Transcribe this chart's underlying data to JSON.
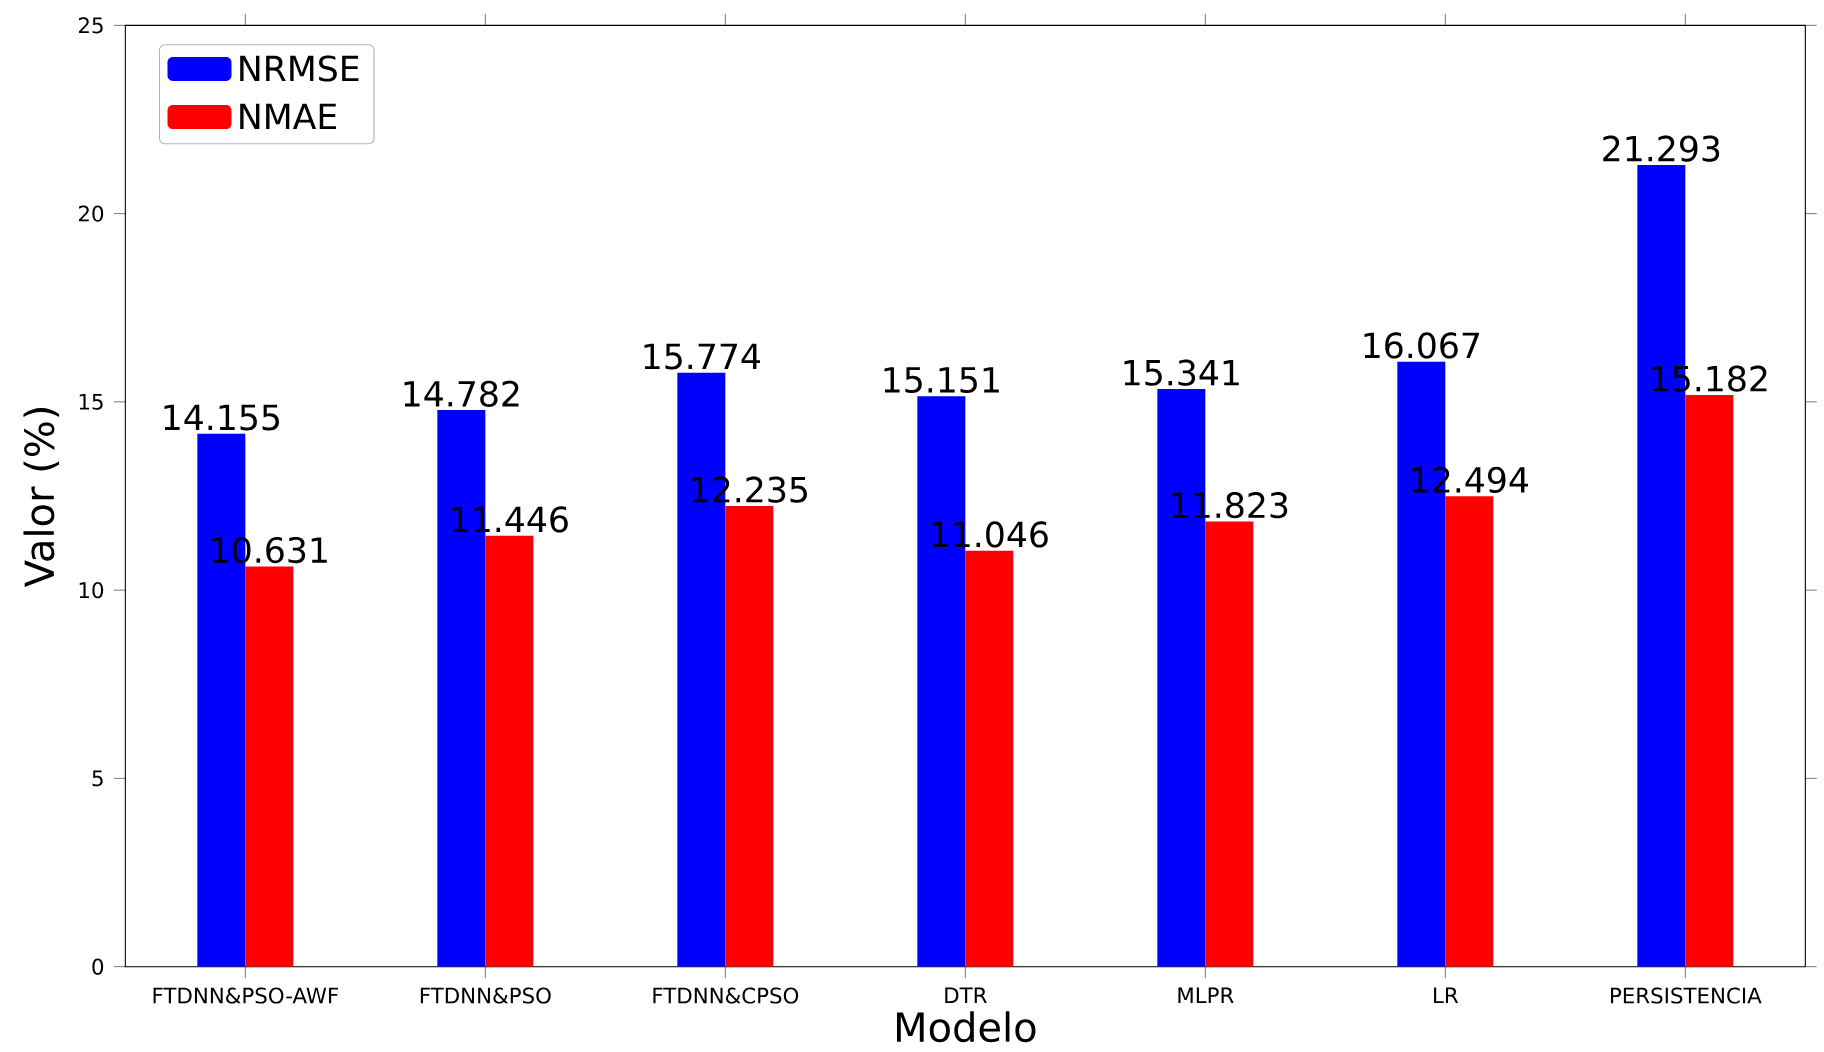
{
  "chart_data": {
    "type": "bar",
    "xlabel": "Modelo",
    "ylabel": "Valor (%)",
    "categories": [
      "FTDNN&PSO-AWF",
      "FTDNN&PSO",
      "FTDNN&CPSO",
      "DTR",
      "MLPR",
      "LR",
      "PERSISTENCIA"
    ],
    "series": [
      {
        "name": "NRMSE",
        "color": "#0000ff",
        "values": [
          14.155,
          14.782,
          15.774,
          15.151,
          15.341,
          16.067,
          21.293
        ]
      },
      {
        "name": "NMAE",
        "color": "#ff0000",
        "values": [
          10.631,
          11.446,
          12.235,
          11.046,
          11.823,
          12.494,
          15.182
        ]
      }
    ],
    "ylim": [
      0,
      25
    ],
    "yticks": [
      0,
      5,
      10,
      15,
      20,
      25
    ],
    "data_labels": true,
    "legend": "top left",
    "grid": false
  }
}
